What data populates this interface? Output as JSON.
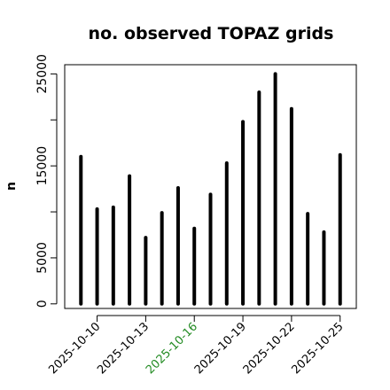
{
  "chart_data": {
    "type": "bar",
    "title": "no. observed TOPAZ grids",
    "xlabel": "",
    "ylabel": "n",
    "x": [
      "2025-10-09",
      "2025-10-10",
      "2025-10-11",
      "2025-10-12",
      "2025-10-13",
      "2025-10-14",
      "2025-10-15",
      "2025-10-16",
      "2025-10-17",
      "2025-10-18",
      "2025-10-19",
      "2025-10-20",
      "2025-10-21",
      "2025-10-22",
      "2025-10-23",
      "2025-10-24",
      "2025-10-25"
    ],
    "values": [
      16000,
      10300,
      10500,
      13900,
      7200,
      9900,
      12600,
      8200,
      11900,
      15300,
      19800,
      23000,
      25000,
      21200,
      9800,
      7800,
      16200
    ],
    "xlim": [
      "2025-10-08",
      "2025-10-26"
    ],
    "ylim": [
      -500,
      26000
    ],
    "yticks": [
      {
        "value": 0,
        "label": "0"
      },
      {
        "value": 5000,
        "label": "5000"
      },
      {
        "value": 15000,
        "label": "15000"
      },
      {
        "value": 25000,
        "label": "25000"
      }
    ],
    "xticks": [
      {
        "value": "2025-10-10",
        "label": "2025-10-10",
        "color": "#000000"
      },
      {
        "value": "2025-10-13",
        "label": "2025-10-13",
        "color": "#000000"
      },
      {
        "value": "2025-10-16",
        "label": "2025-10-16",
        "color": "#228B22"
      },
      {
        "value": "2025-10-19",
        "label": "2025-10-19",
        "color": "#000000"
      },
      {
        "value": "2025-10-22",
        "label": "2025-10-22",
        "color": "#000000"
      },
      {
        "value": "2025-10-25",
        "label": "2025-10-25",
        "color": "#000000"
      }
    ],
    "bar_color": "#000000",
    "highlight_color": "#228B22",
    "grid": false,
    "legend": "none"
  }
}
